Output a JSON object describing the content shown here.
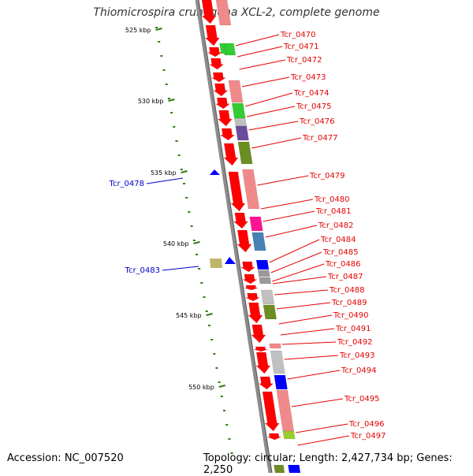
{
  "title": "Thiomicrospira crunogena XCL-2, complete genome",
  "accession": "Accession: NC_007520",
  "topology": "Topology: circular; Length: 2,427,734 bp; Genes: 2,250",
  "colors": {
    "backbone": "#8c8c8c",
    "tick": "#2e7d10",
    "label_forward": "#e60000",
    "label_reverse": "#0000cc",
    "gene_red": "#ff0000",
    "gene_pink": "#f08a8a",
    "gene_green": "#33cc33",
    "gene_purple": "#6a4c9c",
    "gene_olive": "#6b8e23",
    "gene_magenta": "#ff1493",
    "gene_steelblue": "#4682b4",
    "gene_blue": "#0000ff",
    "gene_gray": "#999999",
    "gene_lightgray": "#c0c0c0",
    "gene_khaki": "#bdb76b",
    "gene_lime": "#9acd32"
  },
  "ticks": [
    {
      "label": "525 kbp"
    },
    {
      "label": "530 kbp"
    },
    {
      "label": "535 kbp"
    },
    {
      "label": "540 kbp"
    },
    {
      "label": "545 kbp"
    },
    {
      "label": "550 kbp"
    }
  ],
  "genes": [
    {
      "name": "Tcr_0470",
      "strand": "forward"
    },
    {
      "name": "Tcr_0471",
      "strand": "forward"
    },
    {
      "name": "Tcr_0472",
      "strand": "forward"
    },
    {
      "name": "Tcr_0473",
      "strand": "forward"
    },
    {
      "name": "Tcr_0474",
      "strand": "forward"
    },
    {
      "name": "Tcr_0475",
      "strand": "forward"
    },
    {
      "name": "Tcr_0476",
      "strand": "forward"
    },
    {
      "name": "Tcr_0477",
      "strand": "forward"
    },
    {
      "name": "Tcr_0478",
      "strand": "reverse"
    },
    {
      "name": "Tcr_0479",
      "strand": "forward"
    },
    {
      "name": "Tcr_0480",
      "strand": "forward"
    },
    {
      "name": "Tcr_0481",
      "strand": "forward"
    },
    {
      "name": "Tcr_0482",
      "strand": "forward"
    },
    {
      "name": "Tcr_0483",
      "strand": "reverse"
    },
    {
      "name": "Tcr_0484",
      "strand": "forward"
    },
    {
      "name": "Tcr_0485",
      "strand": "forward"
    },
    {
      "name": "Tcr_0486",
      "strand": "forward"
    },
    {
      "name": "Tcr_0487",
      "strand": "forward"
    },
    {
      "name": "Tcr_0488",
      "strand": "forward"
    },
    {
      "name": "Tcr_0489",
      "strand": "forward"
    },
    {
      "name": "Tcr_0490",
      "strand": "forward"
    },
    {
      "name": "Tcr_0491",
      "strand": "forward"
    },
    {
      "name": "Tcr_0492",
      "strand": "forward"
    },
    {
      "name": "Tcr_0493",
      "strand": "forward"
    },
    {
      "name": "Tcr_0494",
      "strand": "forward"
    },
    {
      "name": "Tcr_0495",
      "strand": "forward"
    },
    {
      "name": "Tcr_0496",
      "strand": "forward"
    },
    {
      "name": "Tcr_0497",
      "strand": "forward"
    }
  ]
}
